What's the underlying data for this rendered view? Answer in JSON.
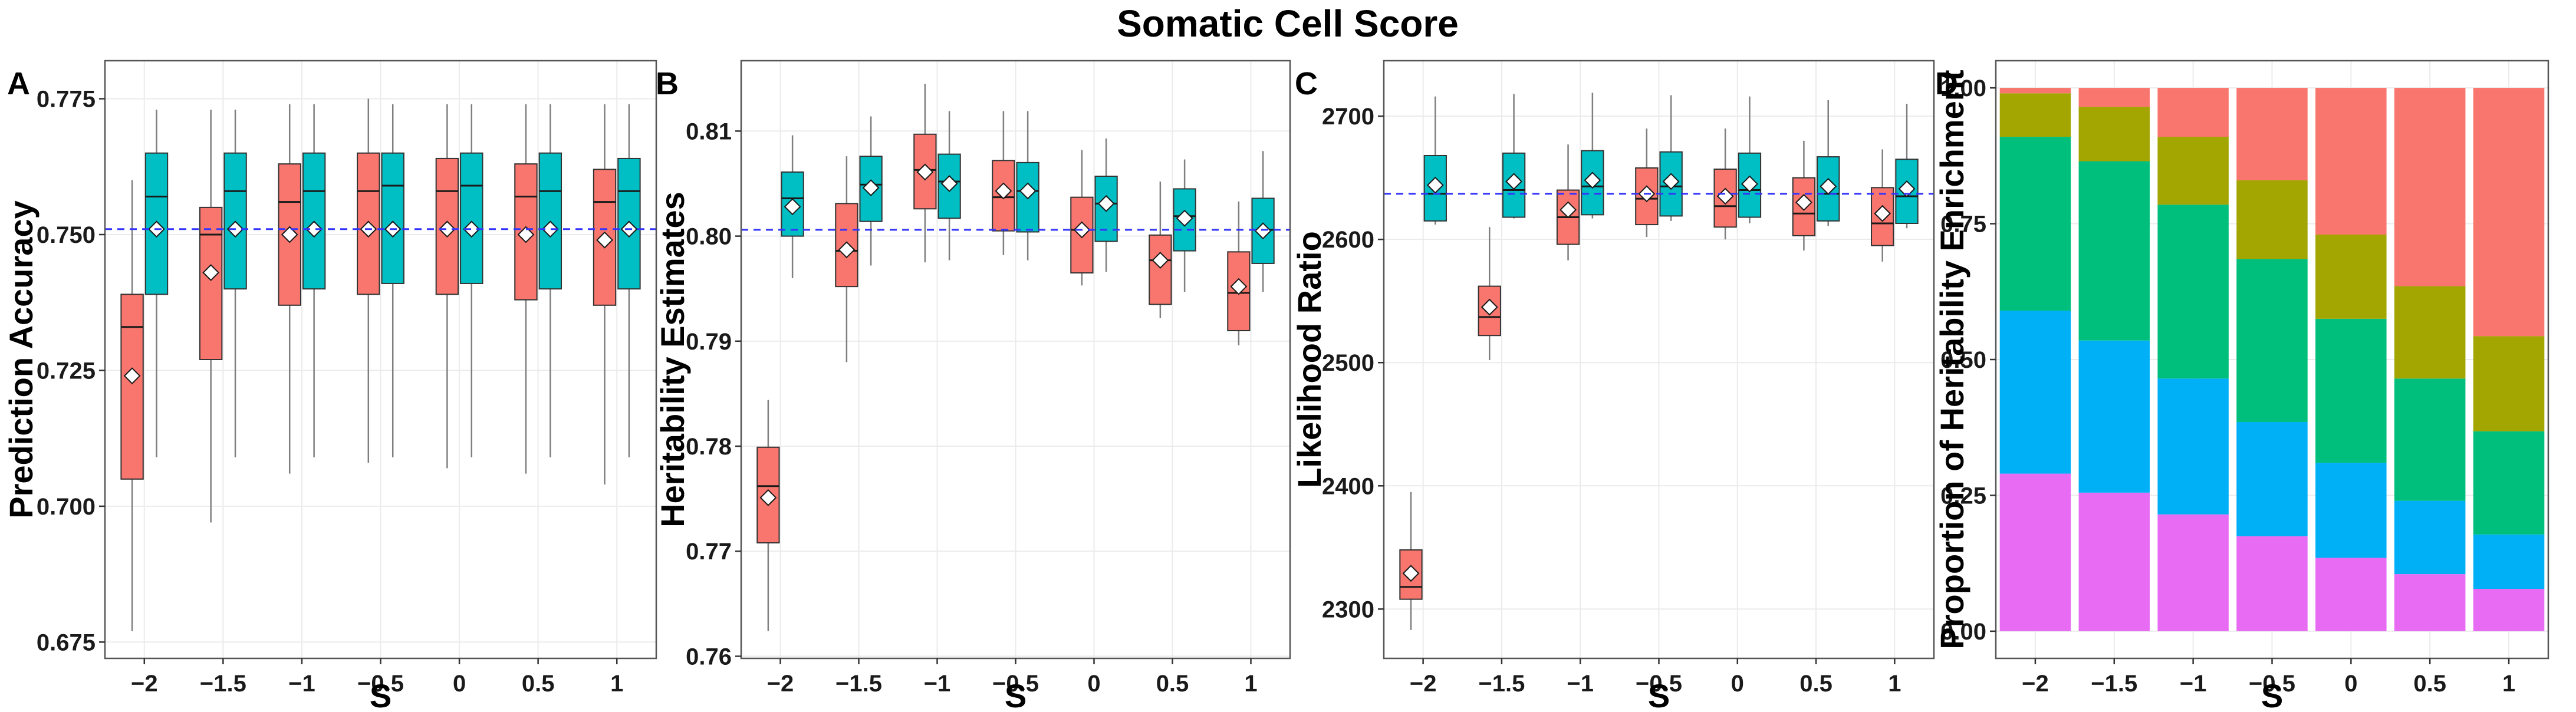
{
  "figure": {
    "title": "Somatic Cell Score"
  },
  "colors": {
    "group_a": "#F8766D",
    "group_b": "#00BFC4",
    "reference_line": "#3333FF",
    "panel_border": "#555555",
    "grid": "#EBEBEB",
    "whisker": "#7F7F7F"
  },
  "chart_data": [
    {
      "panel": "A",
      "type": "box",
      "title": "",
      "xlabel": "S",
      "ylabel": "Prediction Accuracy",
      "categories": [
        "−2",
        "−1.5",
        "−1",
        "−0.5",
        "0",
        "0.5",
        "1"
      ],
      "ylim": [
        0.672,
        0.782
      ],
      "yticks": [
        0.675,
        0.7,
        0.725,
        0.75,
        0.775
      ],
      "ytick_labels": [
        "0.675",
        "0.700",
        "0.725",
        "0.750",
        "0.775"
      ],
      "reference_line": 0.751,
      "series": [
        {
          "name": "group_a",
          "boxes": [
            {
              "low": 0.677,
              "q1": 0.705,
              "median": 0.733,
              "q3": 0.739,
              "high": 0.76,
              "mean": 0.724
            },
            {
              "low": 0.697,
              "q1": 0.727,
              "median": 0.75,
              "q3": 0.755,
              "high": 0.773,
              "mean": 0.743
            },
            {
              "low": 0.706,
              "q1": 0.737,
              "median": 0.756,
              "q3": 0.763,
              "high": 0.774,
              "mean": 0.75
            },
            {
              "low": 0.708,
              "q1": 0.739,
              "median": 0.758,
              "q3": 0.765,
              "high": 0.775,
              "mean": 0.751
            },
            {
              "low": 0.707,
              "q1": 0.739,
              "median": 0.758,
              "q3": 0.764,
              "high": 0.774,
              "mean": 0.751
            },
            {
              "low": 0.706,
              "q1": 0.738,
              "median": 0.757,
              "q3": 0.763,
              "high": 0.774,
              "mean": 0.75
            },
            {
              "low": 0.704,
              "q1": 0.737,
              "median": 0.756,
              "q3": 0.762,
              "high": 0.774,
              "mean": 0.749
            }
          ]
        },
        {
          "name": "group_b",
          "boxes": [
            {
              "low": 0.709,
              "q1": 0.739,
              "median": 0.757,
              "q3": 0.765,
              "high": 0.773,
              "mean": 0.751
            },
            {
              "low": 0.709,
              "q1": 0.74,
              "median": 0.758,
              "q3": 0.765,
              "high": 0.773,
              "mean": 0.751
            },
            {
              "low": 0.709,
              "q1": 0.74,
              "median": 0.758,
              "q3": 0.765,
              "high": 0.774,
              "mean": 0.751
            },
            {
              "low": 0.709,
              "q1": 0.741,
              "median": 0.759,
              "q3": 0.765,
              "high": 0.774,
              "mean": 0.751
            },
            {
              "low": 0.709,
              "q1": 0.741,
              "median": 0.759,
              "q3": 0.765,
              "high": 0.774,
              "mean": 0.751
            },
            {
              "low": 0.709,
              "q1": 0.74,
              "median": 0.758,
              "q3": 0.765,
              "high": 0.774,
              "mean": 0.751
            },
            {
              "low": 0.709,
              "q1": 0.74,
              "median": 0.758,
              "q3": 0.764,
              "high": 0.774,
              "mean": 0.751
            }
          ]
        }
      ]
    },
    {
      "panel": "B",
      "type": "box",
      "title": "",
      "xlabel": "S",
      "ylabel": "Heritability Estimates",
      "categories": [
        "−2",
        "−1.5",
        "−1",
        "−0.5",
        "0",
        "0.5",
        "1"
      ],
      "ylim": [
        0.7598,
        0.8167
      ],
      "yticks": [
        0.76,
        0.77,
        0.78,
        0.79,
        0.8,
        0.81
      ],
      "ytick_labels": [
        "0.76",
        "0.77",
        "0.78",
        "0.79",
        "0.80",
        "0.81"
      ],
      "reference_line": 0.8006,
      "series": [
        {
          "name": "group_a",
          "boxes": [
            {
              "low": 0.7624,
              "q1": 0.7708,
              "median": 0.7762,
              "q3": 0.7799,
              "high": 0.7844,
              "mean": 0.7751
            },
            {
              "low": 0.788,
              "q1": 0.7952,
              "median": 0.7986,
              "q3": 0.8031,
              "high": 0.8076,
              "mean": 0.7987
            },
            {
              "low": 0.7975,
              "q1": 0.8026,
              "median": 0.8063,
              "q3": 0.8097,
              "high": 0.8145,
              "mean": 0.8061
            },
            {
              "low": 0.7982,
              "q1": 0.8005,
              "median": 0.8037,
              "q3": 0.8072,
              "high": 0.8119,
              "mean": 0.8043
            },
            {
              "low": 0.7953,
              "q1": 0.7965,
              "median": 0.8006,
              "q3": 0.8037,
              "high": 0.8082,
              "mean": 0.8006
            },
            {
              "low": 0.7922,
              "q1": 0.7935,
              "median": 0.7977,
              "q3": 0.8001,
              "high": 0.8052,
              "mean": 0.7977
            },
            {
              "low": 0.7896,
              "q1": 0.791,
              "median": 0.7946,
              "q3": 0.7985,
              "high": 0.8033,
              "mean": 0.7952
            }
          ]
        },
        {
          "name": "group_b",
          "boxes": [
            {
              "low": 0.796,
              "q1": 0.8,
              "median": 0.8036,
              "q3": 0.8061,
              "high": 0.8096,
              "mean": 0.8028
            },
            {
              "low": 0.7972,
              "q1": 0.8014,
              "median": 0.8049,
              "q3": 0.8076,
              "high": 0.8114,
              "mean": 0.8046
            },
            {
              "low": 0.7977,
              "q1": 0.8017,
              "median": 0.8052,
              "q3": 0.8078,
              "high": 0.8119,
              "mean": 0.805
            },
            {
              "low": 0.7977,
              "q1": 0.8004,
              "median": 0.8043,
              "q3": 0.807,
              "high": 0.8119,
              "mean": 0.8043
            },
            {
              "low": 0.7966,
              "q1": 0.7995,
              "median": 0.8031,
              "q3": 0.8057,
              "high": 0.8093,
              "mean": 0.8031
            },
            {
              "low": 0.7947,
              "q1": 0.7986,
              "median": 0.8019,
              "q3": 0.8045,
              "high": 0.8073,
              "mean": 0.8017
            },
            {
              "low": 0.7947,
              "q1": 0.7974,
              "median": 0.8006,
              "q3": 0.8036,
              "high": 0.8081,
              "mean": 0.8005
            }
          ]
        }
      ]
    },
    {
      "panel": "C",
      "type": "box",
      "title": "",
      "xlabel": "S",
      "ylabel": "Likelihood Ratio",
      "categories": [
        "−2",
        "−1.5",
        "−1",
        "−0.5",
        "0",
        "0.5",
        "1"
      ],
      "ylim": [
        2260,
        2745
      ],
      "yticks": [
        2300,
        2400,
        2500,
        2600,
        2700
      ],
      "ytick_labels": [
        "2300",
        "2400",
        "2500",
        "2600",
        "2700"
      ],
      "reference_line": 2637,
      "series": [
        {
          "name": "group_a",
          "boxes": [
            {
              "low": 2283,
              "q1": 2308,
              "median": 2318,
              "q3": 2348,
              "high": 2395,
              "mean": 2329
            },
            {
              "low": 2502,
              "q1": 2522,
              "median": 2537,
              "q3": 2562,
              "high": 2610,
              "mean": 2545
            },
            {
              "low": 2583,
              "q1": 2596,
              "median": 2618,
              "q3": 2640,
              "high": 2677,
              "mean": 2624
            },
            {
              "low": 2602,
              "q1": 2612,
              "median": 2633,
              "q3": 2658,
              "high": 2690,
              "mean": 2637
            },
            {
              "low": 2600,
              "q1": 2610,
              "median": 2627,
              "q3": 2657,
              "high": 2690,
              "mean": 2635
            },
            {
              "low": 2591,
              "q1": 2603,
              "median": 2621,
              "q3": 2650,
              "high": 2680,
              "mean": 2630
            },
            {
              "low": 2582,
              "q1": 2595,
              "median": 2613,
              "q3": 2642,
              "high": 2673,
              "mean": 2621
            }
          ]
        },
        {
          "name": "group_b",
          "boxes": [
            {
              "low": 2612,
              "q1": 2615,
              "median": 2637,
              "q3": 2668,
              "high": 2716,
              "mean": 2644
            },
            {
              "low": 2617,
              "q1": 2618,
              "median": 2640,
              "q3": 2670,
              "high": 2718,
              "mean": 2647
            },
            {
              "low": 2617,
              "q1": 2620,
              "median": 2643,
              "q3": 2672,
              "high": 2719,
              "mean": 2648
            },
            {
              "low": 2615,
              "q1": 2619,
              "median": 2643,
              "q3": 2671,
              "high": 2717,
              "mean": 2647
            },
            {
              "low": 2613,
              "q1": 2618,
              "median": 2640,
              "q3": 2670,
              "high": 2716,
              "mean": 2645
            },
            {
              "low": 2611,
              "q1": 2615,
              "median": 2637,
              "q3": 2667,
              "high": 2713,
              "mean": 2643
            },
            {
              "low": 2609,
              "q1": 2613,
              "median": 2635,
              "q3": 2665,
              "high": 2710,
              "mean": 2641
            }
          ]
        }
      ]
    },
    {
      "panel": "D",
      "type": "bar",
      "stacked": true,
      "title": "",
      "xlabel": "S",
      "ylabel": "Proportion of Heritability Enrichment",
      "categories": [
        "−2",
        "−1.5",
        "−1",
        "−0.5",
        "0",
        "0.5",
        "1"
      ],
      "ylim": [
        -0.05,
        1.05
      ],
      "yticks": [
        0,
        0.25,
        0.5,
        0.75,
        1.0
      ],
      "ytick_labels": [
        "0.00",
        "0.25",
        "0.50",
        "0.75",
        "1.00"
      ],
      "stack_order_bottom_to_top": [
        "magenta",
        "blue",
        "green",
        "olive",
        "salmon"
      ],
      "series": [
        {
          "name": "magenta",
          "color": "#E76BF3",
          "values": [
            0.29,
            0.255,
            0.215,
            0.175,
            0.135,
            0.105,
            0.078
          ]
        },
        {
          "name": "blue",
          "color": "#00B0F6",
          "values": [
            0.3,
            0.28,
            0.25,
            0.21,
            0.175,
            0.135,
            0.1
          ]
        },
        {
          "name": "green",
          "color": "#00BF7D",
          "values": [
            0.32,
            0.33,
            0.32,
            0.3,
            0.265,
            0.225,
            0.19
          ]
        },
        {
          "name": "olive",
          "color": "#A3A500",
          "values": [
            0.08,
            0.1,
            0.125,
            0.145,
            0.155,
            0.17,
            0.175
          ]
        },
        {
          "name": "salmon",
          "color": "#F8766D",
          "values": [
            0.01,
            0.035,
            0.09,
            0.17,
            0.27,
            0.365,
            0.457
          ]
        }
      ]
    }
  ]
}
